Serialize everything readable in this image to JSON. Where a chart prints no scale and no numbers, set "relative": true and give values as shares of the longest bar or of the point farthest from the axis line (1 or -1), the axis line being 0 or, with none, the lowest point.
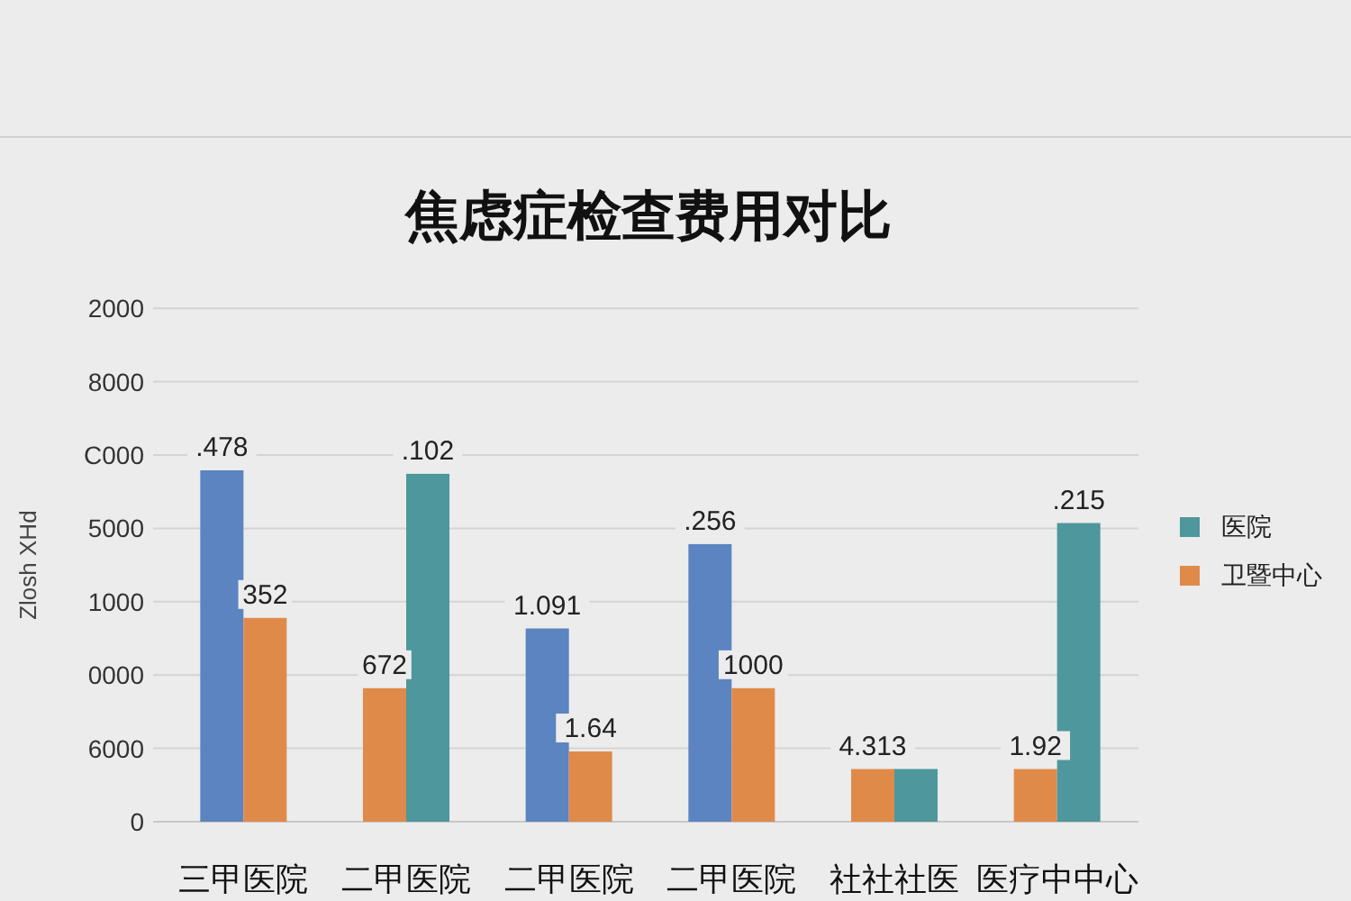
{
  "chart_data": {
    "type": "bar",
    "title": "焦虑症检查费用对比",
    "ylabel": "Zlosh XHd",
    "relative": true,
    "categories": [
      "三甲医院",
      "二甲医院",
      "二甲医院",
      "二甲医院",
      "社社社医",
      "医疗中中心"
    ],
    "series": [
      {
        "color": "#5b84c0",
        "values": [
          1,
          null,
          0.55,
          0.79,
          null,
          null
        ]
      },
      {
        "name": "卫暨中心",
        "color": "#e08a4a",
        "values": [
          0.58,
          0.38,
          0.2,
          0.38,
          0.15,
          0.15
        ]
      },
      {
        "name": "医院",
        "color": "#4e979c",
        "values": [
          null,
          0.99,
          null,
          null,
          0.15,
          0.85
        ]
      }
    ],
    "annotations": [
      "0",
      "6000",
      "0000",
      "1000",
      "5000",
      "C000",
      "8000",
      "2000",
      {
        "text": ".478",
        "x": "三甲医院",
        "y": 1
      },
      {
        "text": "352",
        "x": "三甲医院",
        "y": 0.58
      },
      {
        "text": "672",
        "x": "二甲医院",
        "y": 0.38
      },
      {
        "text": ".102",
        "x": "二甲医院",
        "y": 0.99
      },
      {
        "text": "4.313",
        "x": "社社社医",
        "y": 0.15
      },
      {
        "text": "1.92",
        "x": "医疗中中心",
        "y": 0.15
      },
      {
        "text": ".215",
        "x": "医疗中中心",
        "y": 0.85
      },
      "1.091",
      "1.64",
      ".256",
      "1000"
    ],
    "grid": "y",
    "legend": "right"
  }
}
